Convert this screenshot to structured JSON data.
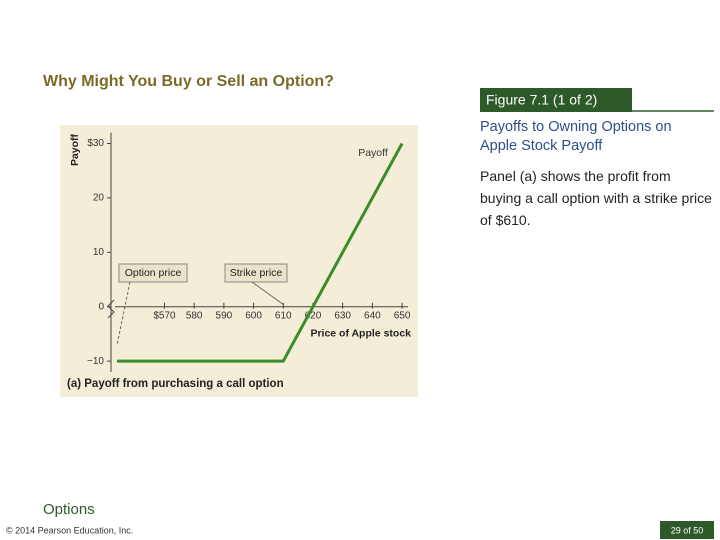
{
  "slide": {
    "title": "Why Might You Buy or Sell an Option?",
    "figure_label": "Figure 7.1 (1 of 2)",
    "heading": "Payoffs to Owning Options on Apple Stock Payoff",
    "body": "Panel (a) shows the profit from buying a call option with a strike price of $610.",
    "section": "Options",
    "copyright": "© 2014 Pearson Education, Inc.",
    "page": "29 of 50"
  },
  "chart_data": {
    "type": "line",
    "caption": "(a) Payoff from purchasing a call option",
    "x_label": "Price of Apple stock",
    "y_label": "Payoff",
    "annotations": [
      "Option price",
      "Strike price"
    ],
    "x": [
      554,
      610,
      650
    ],
    "series": [
      {
        "name": "Payoff",
        "color": "#3c8c2c",
        "values": [
          -10,
          -10,
          30
        ]
      }
    ],
    "xlim": [
      552,
      652
    ],
    "ylim": [
      -12,
      32
    ],
    "xticks": [
      {
        "value": 570,
        "label": "$570"
      },
      580,
      590,
      600,
      610,
      620,
      630,
      640,
      650
    ],
    "yticks": [
      {
        "value": 30,
        "label": "$30"
      },
      20,
      10,
      0,
      {
        "value": -10,
        "label": "−10"
      }
    ],
    "grid": false
  }
}
